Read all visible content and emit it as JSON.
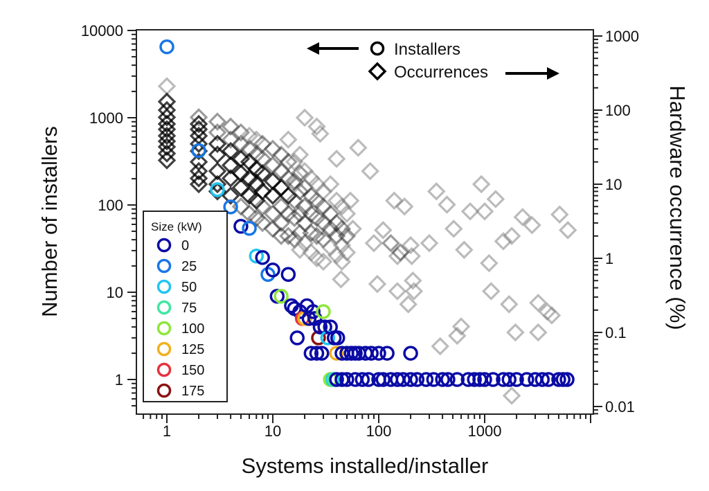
{
  "chart_data": {
    "type": "scatter",
    "xlabel": "Systems installed/installer",
    "ylabel": "Number of installers",
    "y2label": "Hardware occurrence (%)",
    "xscale": "log",
    "yscale": "log",
    "y2scale": "log",
    "xlim": [
      0.5,
      10700
    ],
    "ylim": [
      0.4,
      10000
    ],
    "y2lim": [
      0.009,
      1100
    ],
    "xticks": [
      {
        "v": 1,
        "label": "1"
      },
      {
        "v": 10,
        "label": "10"
      },
      {
        "v": 100,
        "label": "100"
      },
      {
        "v": 1000,
        "label": "1000"
      }
    ],
    "yticks": [
      {
        "v": 1,
        "label": "1"
      },
      {
        "v": 10,
        "label": "10"
      },
      {
        "v": 100,
        "label": "100"
      },
      {
        "v": 1000,
        "label": "1000"
      },
      {
        "v": 10000,
        "label": "10000"
      }
    ],
    "y2ticks": [
      {
        "v": 0.01,
        "label": "0.01"
      },
      {
        "v": 0.1,
        "label": "0.1"
      },
      {
        "v": 1,
        "label": "1"
      },
      {
        "v": 10,
        "label": "10"
      },
      {
        "v": 100,
        "label": "100"
      },
      {
        "v": 1000,
        "label": "1000"
      }
    ],
    "grid": false,
    "series_legend": {
      "installers": "Installers",
      "occurrences": "Occurrences"
    },
    "size_legend": {
      "title": "Size (kW)",
      "placement": "bottom-left",
      "entries": [
        {
          "label": "0",
          "color": "#0b0ba6"
        },
        {
          "label": "25",
          "color": "#1976e6"
        },
        {
          "label": "50",
          "color": "#22c4f0"
        },
        {
          "label": "75",
          "color": "#3fe6a2"
        },
        {
          "label": "100",
          "color": "#8ee63c"
        },
        {
          "label": "125",
          "color": "#f2b01e"
        },
        {
          "label": "150",
          "color": "#e6323f"
        },
        {
          "label": "175",
          "color": "#8a1212"
        }
      ]
    },
    "installers": [
      [
        1,
        6500,
        25
      ],
      [
        2,
        420,
        25
      ],
      [
        3,
        150,
        50
      ],
      [
        4,
        95,
        25
      ],
      [
        5,
        57,
        0
      ],
      [
        6,
        54,
        25
      ],
      [
        7,
        26,
        50
      ],
      [
        8,
        25,
        0
      ],
      [
        9,
        16,
        25
      ],
      [
        10,
        18,
        0
      ],
      [
        11,
        9,
        0
      ],
      [
        12,
        9,
        100
      ],
      [
        14,
        16,
        0
      ],
      [
        15,
        7,
        0
      ],
      [
        16,
        6.5,
        0
      ],
      [
        17,
        3,
        0
      ],
      [
        18,
        6,
        0
      ],
      [
        19,
        5,
        150
      ],
      [
        20,
        5,
        125
      ],
      [
        21,
        7,
        0
      ],
      [
        22,
        5,
        0
      ],
      [
        24,
        6,
        0
      ],
      [
        25,
        5,
        0
      ],
      [
        27,
        3,
        175
      ],
      [
        28,
        4,
        0
      ],
      [
        30,
        6,
        100
      ],
      [
        31,
        4,
        0
      ],
      [
        33,
        3,
        50
      ],
      [
        35,
        4,
        0
      ],
      [
        38,
        3,
        0
      ],
      [
        41,
        3,
        0
      ],
      [
        23,
        2,
        0
      ],
      [
        26,
        2,
        0
      ],
      [
        29,
        2,
        0
      ],
      [
        40,
        2,
        125
      ],
      [
        45,
        2,
        0
      ],
      [
        50,
        2,
        0
      ],
      [
        55,
        2,
        0
      ],
      [
        60,
        2,
        0
      ],
      [
        65,
        2,
        0
      ],
      [
        75,
        2,
        0
      ],
      [
        85,
        2,
        0
      ],
      [
        100,
        2,
        0
      ],
      [
        120,
        2,
        0
      ],
      [
        200,
        2,
        0
      ],
      [
        35,
        1,
        100
      ],
      [
        37,
        1,
        50
      ],
      [
        38,
        1,
        75
      ],
      [
        40,
        1,
        0
      ],
      [
        45,
        1,
        0
      ],
      [
        50,
        1,
        0
      ],
      [
        60,
        1,
        0
      ],
      [
        70,
        1,
        0
      ],
      [
        80,
        1,
        0
      ],
      [
        100,
        1,
        0
      ],
      [
        110,
        1,
        0
      ],
      [
        130,
        1,
        0
      ],
      [
        150,
        1,
        0
      ],
      [
        170,
        1,
        0
      ],
      [
        200,
        1,
        0
      ],
      [
        230,
        1,
        0
      ],
      [
        280,
        1,
        0
      ],
      [
        330,
        1,
        0
      ],
      [
        400,
        1,
        0
      ],
      [
        450,
        1,
        0
      ],
      [
        550,
        1,
        0
      ],
      [
        700,
        1,
        0
      ],
      [
        800,
        1,
        0
      ],
      [
        900,
        1,
        0
      ],
      [
        1000,
        1,
        0
      ],
      [
        1200,
        1,
        0
      ],
      [
        1500,
        1,
        0
      ],
      [
        1700,
        1,
        0
      ],
      [
        2000,
        1,
        0
      ],
      [
        2500,
        1,
        0
      ],
      [
        3000,
        1,
        0
      ],
      [
        3500,
        1,
        0
      ],
      [
        4000,
        1,
        0
      ],
      [
        5000,
        1,
        0
      ],
      [
        5500,
        1,
        0
      ],
      [
        6000,
        1,
        0
      ]
    ],
    "occurrences": [
      [
        1,
        210,
        "l"
      ],
      [
        1,
        130,
        "d"
      ],
      [
        1,
        100,
        "d"
      ],
      [
        1,
        80,
        "d"
      ],
      [
        1,
        65,
        "d"
      ],
      [
        1,
        55,
        "d"
      ],
      [
        1,
        45,
        "d"
      ],
      [
        1,
        38,
        "d"
      ],
      [
        1,
        32,
        "d"
      ],
      [
        1,
        26,
        "d"
      ],
      [
        1,
        21,
        "d"
      ],
      [
        2,
        80,
        "m"
      ],
      [
        2,
        65,
        "d"
      ],
      [
        2,
        55,
        "d"
      ],
      [
        2,
        45,
        "d"
      ],
      [
        2,
        35,
        "d"
      ],
      [
        2,
        28,
        "d"
      ],
      [
        2,
        20,
        "d"
      ],
      [
        2,
        15,
        "d"
      ],
      [
        2,
        12,
        "d"
      ],
      [
        2,
        10,
        "d"
      ],
      [
        3,
        70,
        "m"
      ],
      [
        3,
        50,
        "m"
      ],
      [
        3,
        35,
        "d"
      ],
      [
        3,
        25,
        "d"
      ],
      [
        3,
        15,
        "d"
      ],
      [
        3,
        10,
        "d"
      ],
      [
        3,
        8,
        "d"
      ],
      [
        4,
        60,
        "m"
      ],
      [
        4,
        40,
        "m"
      ],
      [
        4,
        28,
        "d"
      ],
      [
        4,
        18,
        "d"
      ],
      [
        4,
        12,
        "d"
      ],
      [
        4,
        7,
        "d"
      ],
      [
        5,
        50,
        "m"
      ],
      [
        5,
        35,
        "m"
      ],
      [
        5,
        22,
        "d"
      ],
      [
        5,
        14,
        "d"
      ],
      [
        5,
        9,
        "d"
      ],
      [
        5,
        5,
        "m"
      ],
      [
        6,
        45,
        "l"
      ],
      [
        6,
        30,
        "m"
      ],
      [
        6,
        20,
        "d"
      ],
      [
        6,
        12,
        "d"
      ],
      [
        6,
        7,
        "d"
      ],
      [
        6,
        4,
        "m"
      ],
      [
        7,
        40,
        "l"
      ],
      [
        7,
        25,
        "m"
      ],
      [
        7,
        16,
        "d"
      ],
      [
        7,
        10,
        "d"
      ],
      [
        7,
        6,
        "d"
      ],
      [
        7,
        3.5,
        "m"
      ],
      [
        8,
        35,
        "m"
      ],
      [
        8,
        22,
        "m"
      ],
      [
        8,
        14,
        "d"
      ],
      [
        8,
        8,
        "d"
      ],
      [
        8,
        5,
        "m"
      ],
      [
        8,
        3,
        "m"
      ],
      [
        10,
        30,
        "m"
      ],
      [
        10,
        18,
        "m"
      ],
      [
        10,
        11,
        "d"
      ],
      [
        10,
        7,
        "d"
      ],
      [
        10,
        4,
        "m"
      ],
      [
        10,
        2.5,
        "m"
      ],
      [
        12,
        25,
        "m"
      ],
      [
        12,
        15,
        "m"
      ],
      [
        12,
        9,
        "d"
      ],
      [
        12,
        5,
        "m"
      ],
      [
        12,
        3,
        "m"
      ],
      [
        12,
        2,
        "m"
      ],
      [
        14,
        40,
        "l"
      ],
      [
        14,
        20,
        "m"
      ],
      [
        14,
        12,
        "m"
      ],
      [
        14,
        7,
        "d"
      ],
      [
        14,
        4,
        "m"
      ],
      [
        14,
        2,
        "m"
      ],
      [
        16,
        20,
        "l"
      ],
      [
        16,
        11,
        "m"
      ],
      [
        16,
        6,
        "m"
      ],
      [
        16,
        3.5,
        "m"
      ],
      [
        16,
        1.8,
        "m"
      ],
      [
        18,
        25,
        "l"
      ],
      [
        18,
        14,
        "m"
      ],
      [
        18,
        8,
        "m"
      ],
      [
        18,
        4,
        "m"
      ],
      [
        18,
        2.2,
        "m"
      ],
      [
        18,
        1.3,
        "l"
      ],
      [
        20,
        15,
        "l"
      ],
      [
        20,
        9,
        "m"
      ],
      [
        20,
        5,
        "m"
      ],
      [
        20,
        3,
        "m"
      ],
      [
        20,
        1.6,
        "l"
      ],
      [
        23,
        12,
        "l"
      ],
      [
        23,
        7,
        "m"
      ],
      [
        23,
        4,
        "m"
      ],
      [
        23,
        2.2,
        "m"
      ],
      [
        23,
        1.2,
        "l"
      ],
      [
        26,
        10,
        "l"
      ],
      [
        26,
        6,
        "m"
      ],
      [
        26,
        3.5,
        "m"
      ],
      [
        26,
        2,
        "m"
      ],
      [
        26,
        1,
        "l"
      ],
      [
        30,
        8,
        "l"
      ],
      [
        30,
        5,
        "m"
      ],
      [
        30,
        3,
        "m"
      ],
      [
        30,
        1.8,
        "m"
      ],
      [
        30,
        0.9,
        "l"
      ],
      [
        35,
        10,
        "l"
      ],
      [
        35,
        4,
        "m"
      ],
      [
        35,
        2.5,
        "m"
      ],
      [
        35,
        1.4,
        "l"
      ],
      [
        40,
        6,
        "l"
      ],
      [
        40,
        3,
        "m"
      ],
      [
        40,
        2,
        "m"
      ],
      [
        40,
        1.1,
        "l"
      ],
      [
        45,
        5,
        "l"
      ],
      [
        45,
        2.5,
        "m"
      ],
      [
        45,
        1.5,
        "l"
      ],
      [
        45,
        0.9,
        "l"
      ],
      [
        50,
        4,
        "l"
      ],
      [
        50,
        2,
        "m"
      ],
      [
        50,
        1.2,
        "l"
      ],
      [
        20,
        79,
        "l"
      ],
      [
        28,
        48,
        "l"
      ],
      [
        26,
        60,
        "l"
      ],
      [
        64,
        31,
        "l"
      ],
      [
        40,
        22,
        "l"
      ],
      [
        83,
        15,
        "l"
      ],
      [
        16,
        10,
        "l"
      ],
      [
        54,
        6,
        "l"
      ],
      [
        140,
        6,
        "l"
      ],
      [
        175,
        5,
        "l"
      ],
      [
        350,
        8,
        "l"
      ],
      [
        930,
        10,
        "l"
      ],
      [
        1270,
        6.3,
        "l"
      ],
      [
        440,
        5.3,
        "l"
      ],
      [
        730,
        4.3,
        "l"
      ],
      [
        1000,
        4.3,
        "l"
      ],
      [
        510,
        2.5,
        "l"
      ],
      [
        2280,
        3.6,
        "l"
      ],
      [
        2800,
        2.8,
        "l"
      ],
      [
        5100,
        3.9,
        "l"
      ],
      [
        6100,
        2.4,
        "l"
      ],
      [
        1800,
        2.0,
        "l"
      ],
      [
        1500,
        1.7,
        "l"
      ],
      [
        640,
        1.3,
        "l"
      ],
      [
        300,
        1.6,
        "l"
      ],
      [
        200,
        1.5,
        "l"
      ],
      [
        130,
        1.6,
        "m"
      ],
      [
        90,
        1.6,
        "l"
      ],
      [
        57,
        2.5,
        "l"
      ],
      [
        44,
        0.52,
        "l"
      ],
      [
        97,
        0.45,
        "l"
      ],
      [
        150,
        0.36,
        "l"
      ],
      [
        210,
        0.5,
        "l"
      ],
      [
        190,
        0.24,
        "l"
      ],
      [
        215,
        0.36,
        "l"
      ],
      [
        205,
        1.07,
        "l"
      ],
      [
        1100,
        0.86,
        "l"
      ],
      [
        1150,
        0.36,
        "l"
      ],
      [
        1700,
        0.24,
        "l"
      ],
      [
        3200,
        0.25,
        "l"
      ],
      [
        3900,
        0.19,
        "l"
      ],
      [
        4300,
        0.17,
        "l"
      ],
      [
        600,
        0.12,
        "l"
      ],
      [
        550,
        0.09,
        "l"
      ],
      [
        380,
        0.065,
        "l"
      ],
      [
        1950,
        0.1,
        "l"
      ],
      [
        3200,
        0.1,
        "l"
      ],
      [
        1800,
        0.014,
        "l"
      ],
      [
        150,
        1.07,
        "l"
      ],
      [
        110,
        2.4,
        "l"
      ],
      [
        160,
        1.2,
        "m"
      ]
    ]
  }
}
